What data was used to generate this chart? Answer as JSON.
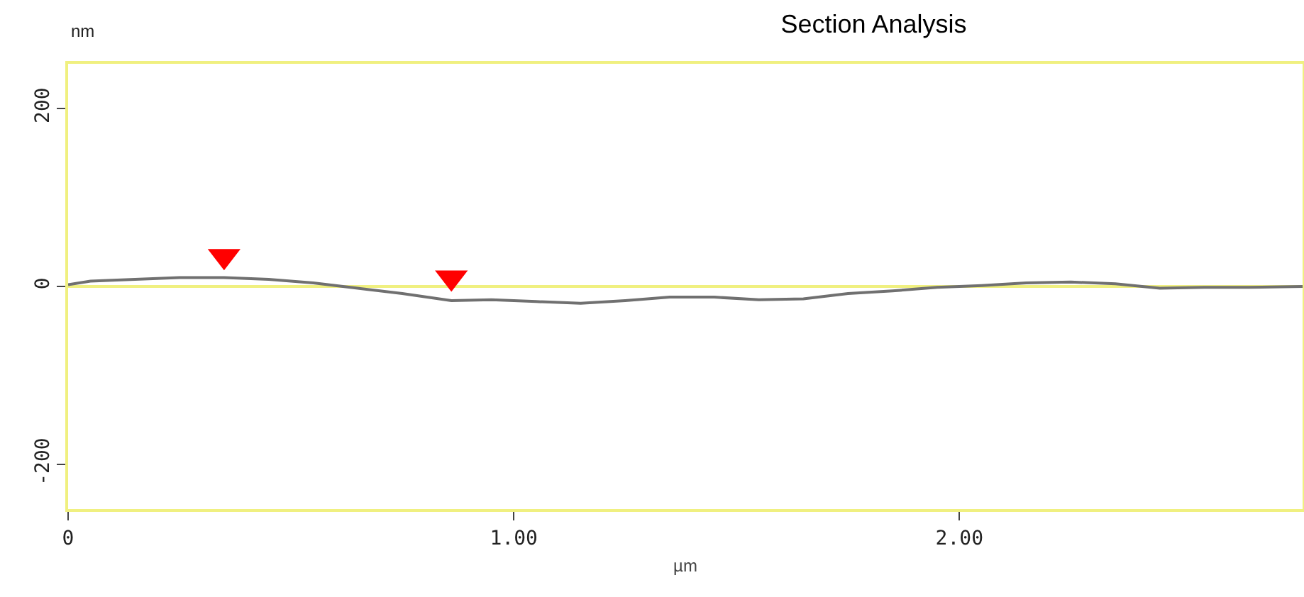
{
  "chart_data": {
    "type": "line",
    "title": "Section Analysis",
    "xlabel": "µm",
    "ylabel": "nm",
    "xlim": [
      0,
      2.77
    ],
    "xticks": [
      {
        "value": 0,
        "label": "0"
      },
      {
        "value": 1,
        "label": "1.00"
      },
      {
        "value": 2,
        "label": "2.00"
      }
    ],
    "ylim": [
      -250,
      250
    ],
    "yticks": [
      -200,
      0,
      200
    ],
    "grid": false,
    "ref_lines": [
      {
        "axis": "y",
        "value": 0,
        "color": "#f0f080"
      }
    ],
    "series": [
      {
        "color": "#707070",
        "marker": "none",
        "x": [
          0,
          0.05,
          0.15,
          0.25,
          0.35,
          0.45,
          0.55,
          0.65,
          0.75,
          0.86,
          0.95,
          1.05,
          1.15,
          1.25,
          1.35,
          1.45,
          1.55,
          1.65,
          1.75,
          1.85,
          1.95,
          2.05,
          2.15,
          2.25,
          2.35,
          2.45,
          2.55,
          2.65,
          2.77
        ],
        "values": [
          2,
          6,
          8,
          10,
          10,
          8,
          4,
          -2,
          -8,
          -16,
          -15,
          -17,
          -19,
          -16,
          -12,
          -12,
          -15,
          -14,
          -8,
          -5,
          -1,
          1,
          4,
          5,
          3,
          -2,
          -1,
          -1,
          0
        ]
      },
      {
        "type": "scatter",
        "color": "#ff0000",
        "marker": "triangle",
        "x": [
          0.35,
          0.86
        ],
        "values": [
          34,
          10
        ]
      }
    ]
  }
}
